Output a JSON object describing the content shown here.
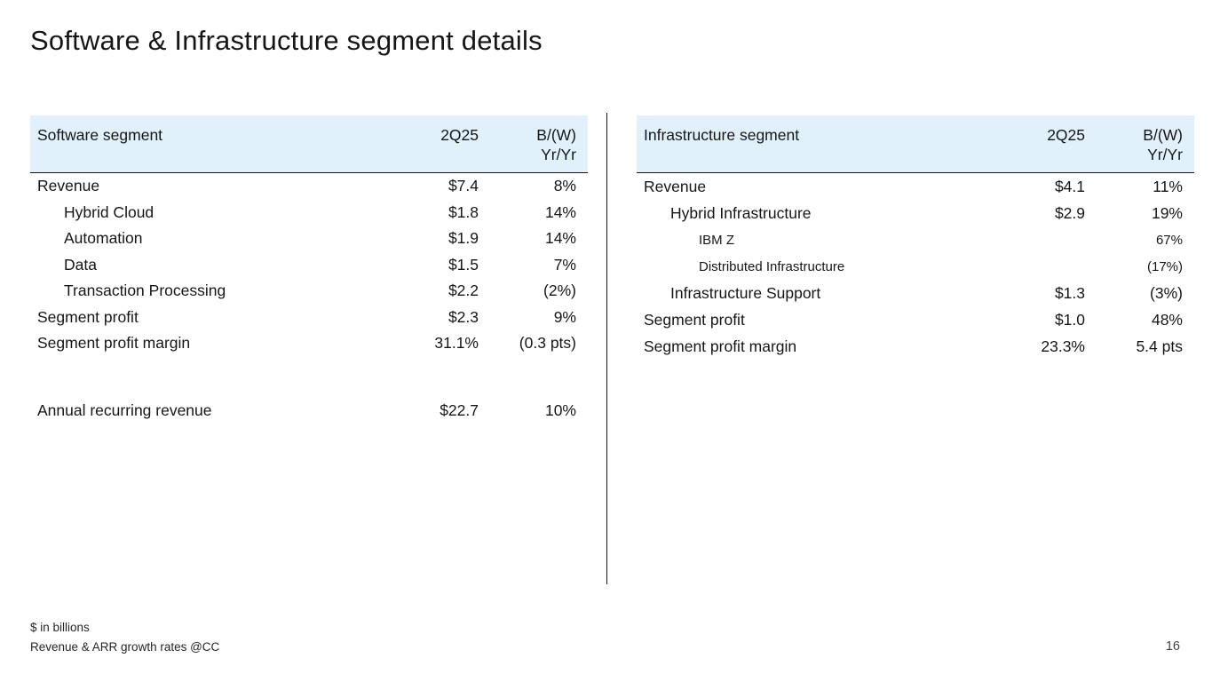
{
  "slide": {
    "title": "Software & Infrastructure segment details",
    "page_number": "16",
    "footnote_line1": "$ in billions",
    "footnote_line2": "Revenue & ARR growth rates @CC"
  },
  "colors": {
    "header_bg": "#e0f1fb",
    "text": "#161616",
    "rule": "#161616"
  },
  "software_table": {
    "header": {
      "label": "Software segment",
      "period": "2Q25",
      "metric_line1": "B/(W)",
      "metric_line2": "Yr/Yr"
    },
    "rows": [
      {
        "label": "Revenue",
        "value": "$7.4",
        "delta": "8%",
        "indent": 0
      },
      {
        "label": "Hybrid Cloud",
        "value": "$1.8",
        "delta": "14%",
        "indent": 1
      },
      {
        "label": "Automation",
        "value": "$1.9",
        "delta": "14%",
        "indent": 1
      },
      {
        "label": "Data",
        "value": "$1.5",
        "delta": "7%",
        "indent": 1
      },
      {
        "label": "Transaction Processing",
        "value": "$2.2",
        "delta": "(2%)",
        "indent": 1
      },
      {
        "label": "Segment profit",
        "value": "$2.3",
        "delta": "9%",
        "indent": 0
      },
      {
        "label": "Segment profit margin",
        "value": "31.1%",
        "delta": "(0.3 pts)",
        "indent": 0
      },
      {
        "label": "Annual recurring revenue",
        "value": "$22.7",
        "delta": "10%",
        "indent": 0,
        "spacer_before": true
      }
    ]
  },
  "infrastructure_table": {
    "header": {
      "label": "Infrastructure segment",
      "period": "2Q25",
      "metric_line1": "B/(W)",
      "metric_line2": "Yr/Yr"
    },
    "rows": [
      {
        "label": "Revenue",
        "value": "$4.1",
        "delta": "11%",
        "indent": 0
      },
      {
        "label": "Hybrid Infrastructure",
        "value": "$2.9",
        "delta": "19%",
        "indent": 1
      },
      {
        "label": "IBM Z",
        "value": "",
        "delta": "67%",
        "indent": 2
      },
      {
        "label": "Distributed Infrastructure",
        "value": "",
        "delta": "(17%)",
        "indent": 2
      },
      {
        "label": "Infrastructure Support",
        "value": "$1.3",
        "delta": "(3%)",
        "indent": 1
      },
      {
        "label": "Segment profit",
        "value": "$1.0",
        "delta": "48%",
        "indent": 0
      },
      {
        "label": "Segment profit margin",
        "value": "23.3%",
        "delta": "5.4 pts",
        "indent": 0
      }
    ]
  }
}
